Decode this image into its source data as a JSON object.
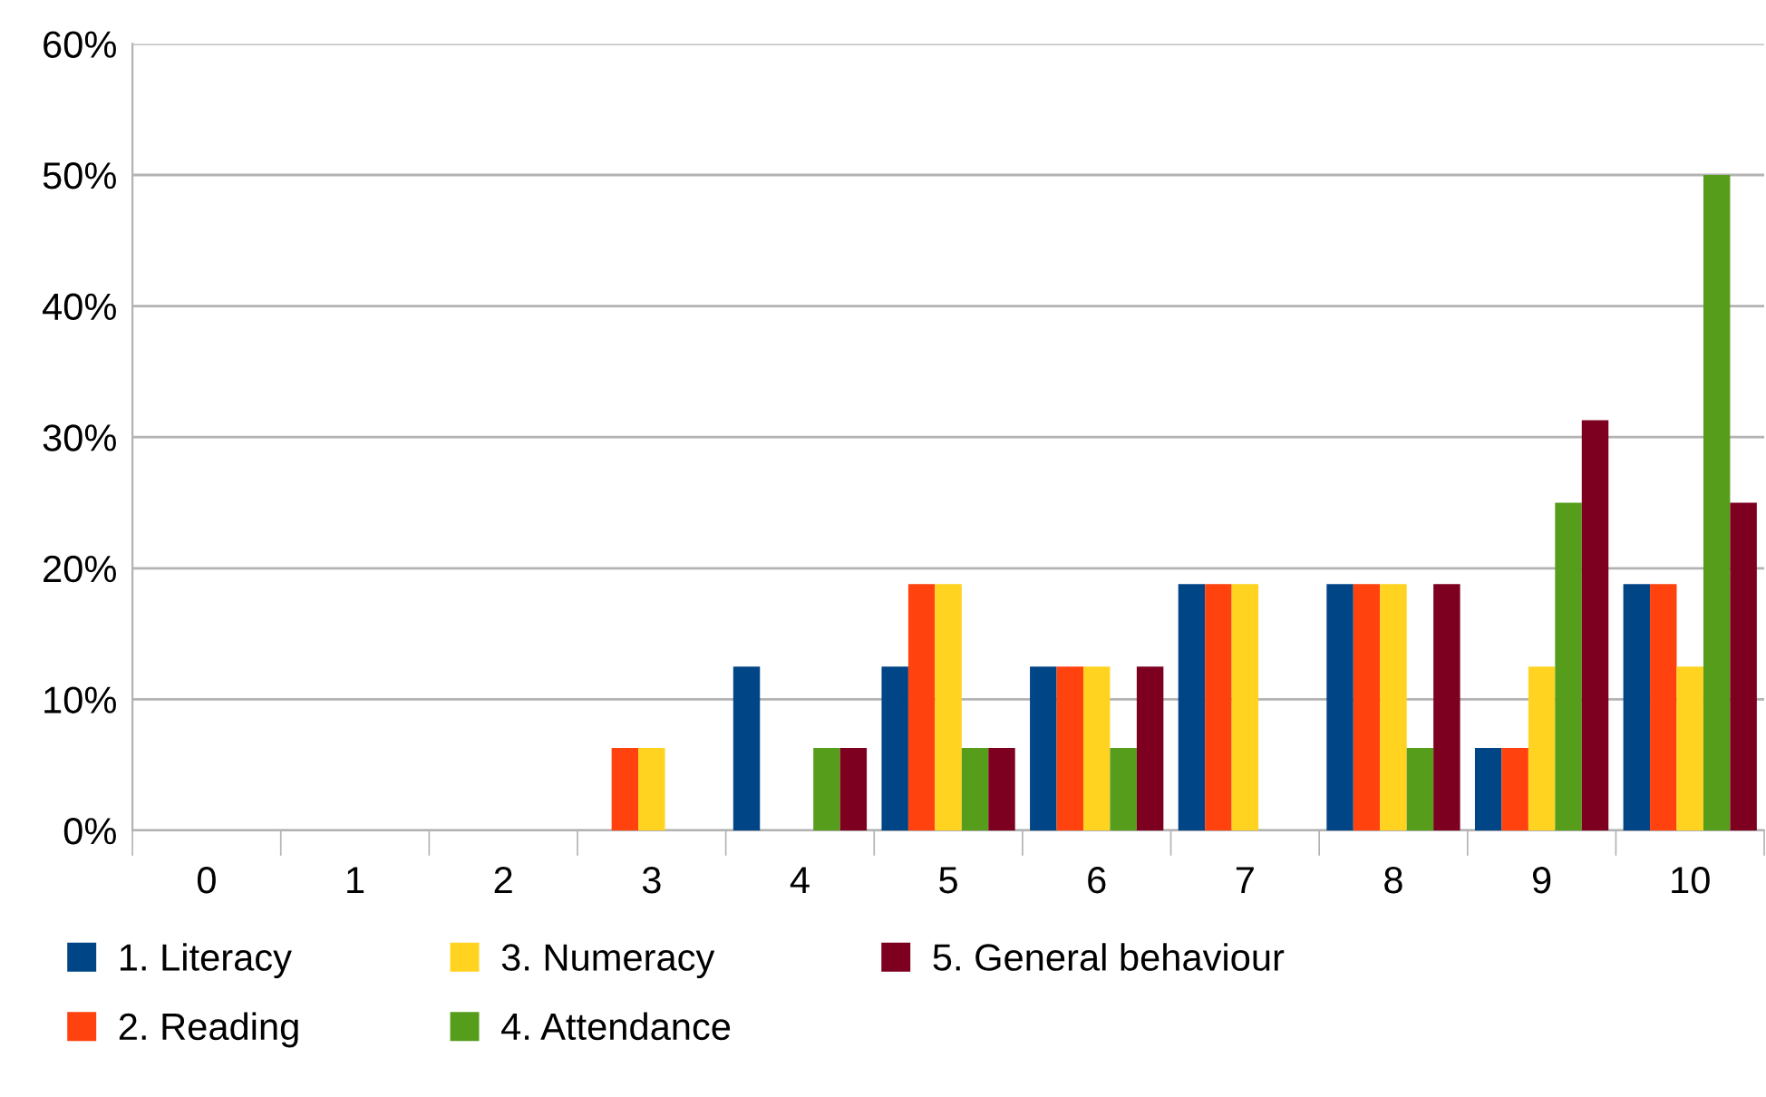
{
  "chart_data": {
    "type": "bar",
    "categories": [
      "0",
      "1",
      "2",
      "3",
      "4",
      "5",
      "6",
      "7",
      "8",
      "9",
      "10"
    ],
    "series": [
      {
        "name": "1. Literacy",
        "color": "#004586",
        "values": [
          0,
          0,
          0,
          0,
          12.5,
          12.5,
          12.5,
          18.8,
          18.8,
          6.3,
          18.8
        ]
      },
      {
        "name": "2. Reading",
        "color": "#ff420e",
        "values": [
          0,
          0,
          0,
          6.3,
          0,
          18.8,
          12.5,
          18.8,
          18.8,
          6.3,
          18.8
        ]
      },
      {
        "name": "3. Numeracy",
        "color": "#ffd320",
        "values": [
          0,
          0,
          0,
          6.3,
          0,
          18.8,
          12.5,
          18.8,
          18.8,
          12.5,
          12.5
        ]
      },
      {
        "name": "4. Attendance",
        "color": "#579d1c",
        "values": [
          0,
          0,
          0,
          0,
          6.3,
          6.3,
          6.3,
          0,
          6.3,
          25,
          50
        ]
      },
      {
        "name": "5. General behaviour",
        "color": "#7e0021",
        "values": [
          0,
          0,
          0,
          0,
          6.3,
          6.3,
          12.5,
          0,
          18.8,
          31.3,
          25
        ]
      }
    ],
    "ylim": [
      0,
      60
    ],
    "yticks": [
      {
        "value": 0,
        "label": "0%"
      },
      {
        "value": 10,
        "label": "10%"
      },
      {
        "value": 20,
        "label": "20%"
      },
      {
        "value": 30,
        "label": "30%"
      },
      {
        "value": 40,
        "label": "40%"
      },
      {
        "value": 50,
        "label": "50%"
      },
      {
        "value": 60,
        "label": "60%"
      }
    ],
    "grid": "y",
    "legend": "bottom"
  }
}
